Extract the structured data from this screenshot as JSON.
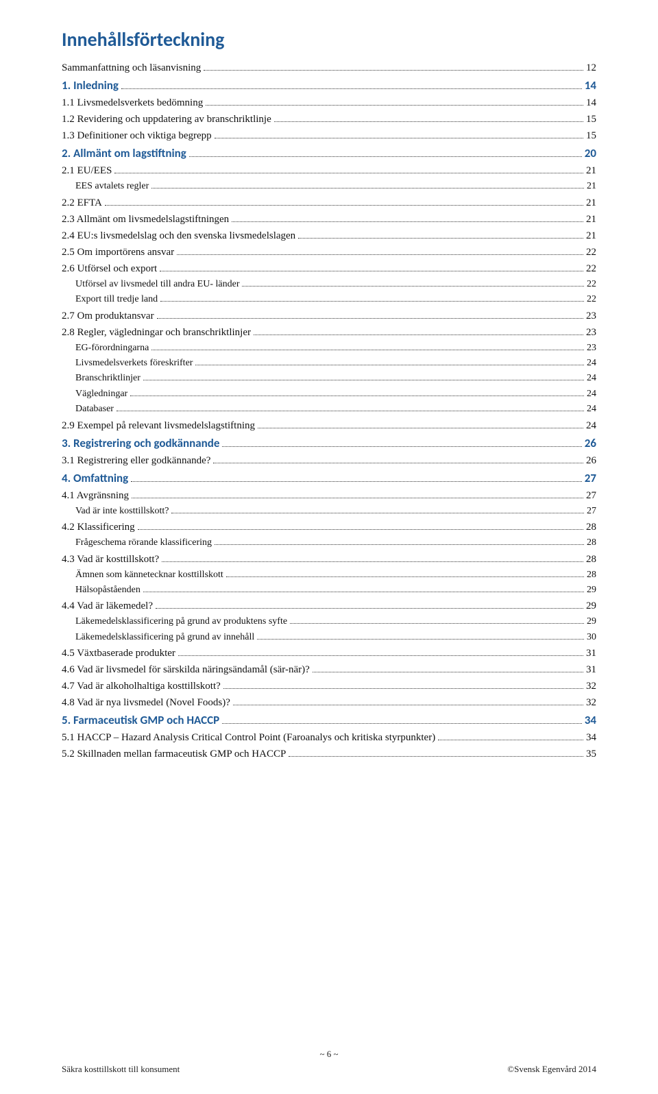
{
  "title": "Innehållsförteckning",
  "toc": [
    {
      "level": 1,
      "style": "normal",
      "label": "Sammanfattning och läsanvisning",
      "page": "12"
    },
    {
      "level": 0,
      "style": "heading",
      "label": "1. Inledning",
      "page": "14"
    },
    {
      "level": 1,
      "style": "normal",
      "label": "1.1 Livsmedelsverkets bedömning",
      "page": "14"
    },
    {
      "level": 1,
      "style": "normal",
      "label": "1.2 Revidering och uppdatering av branschriktlinje",
      "page": "15"
    },
    {
      "level": 1,
      "style": "normal",
      "label": "1.3 Definitioner och viktiga begrepp",
      "page": "15"
    },
    {
      "level": 0,
      "style": "heading",
      "label": "2. Allmänt om lagstiftning",
      "page": "20"
    },
    {
      "level": 1,
      "style": "normal",
      "label": "2.1 EU/EES",
      "page": "21"
    },
    {
      "level": 2,
      "style": "sub",
      "label": "EES avtalets regler",
      "page": "21"
    },
    {
      "level": 1,
      "style": "normal",
      "label": "2.2 EFTA",
      "page": "21"
    },
    {
      "level": 1,
      "style": "normal",
      "label": "2.3 Allmänt om livsmedelslagstiftningen",
      "page": "21"
    },
    {
      "level": 1,
      "style": "normal",
      "label": "2.4 EU:s livsmedelslag och den svenska livsmedelslagen",
      "page": "21"
    },
    {
      "level": 1,
      "style": "normal",
      "label": "2.5 Om importörens ansvar",
      "page": "22"
    },
    {
      "level": 1,
      "style": "normal",
      "label": "2.6 Utförsel och export",
      "page": "22"
    },
    {
      "level": 2,
      "style": "sub",
      "label": "Utförsel av livsmedel till andra EU- länder",
      "page": "22"
    },
    {
      "level": 2,
      "style": "sub",
      "label": "Export till tredje land",
      "page": "22"
    },
    {
      "level": 1,
      "style": "normal",
      "label": "2.7 Om produktansvar",
      "page": "23"
    },
    {
      "level": 1,
      "style": "normal",
      "label": "2.8 Regler, vägledningar och branschriktlinjer",
      "page": "23"
    },
    {
      "level": 2,
      "style": "sub",
      "label": "EG-förordningarna",
      "page": "23"
    },
    {
      "level": 2,
      "style": "sub",
      "label": "Livsmedelsverkets föreskrifter",
      "page": "24"
    },
    {
      "level": 2,
      "style": "sub",
      "label": "Branschriktlinjer",
      "page": "24"
    },
    {
      "level": 2,
      "style": "sub",
      "label": "Vägledningar",
      "page": "24"
    },
    {
      "level": 2,
      "style": "sub",
      "label": "Databaser",
      "page": "24"
    },
    {
      "level": 1,
      "style": "normal",
      "label": "2.9 Exempel på relevant livsmedelslagstiftning",
      "page": "24"
    },
    {
      "level": 0,
      "style": "heading",
      "label": "3. Registrering och godkännande",
      "page": "26"
    },
    {
      "level": 1,
      "style": "normal",
      "label": "3.1 Registrering eller godkännande?",
      "page": "26"
    },
    {
      "level": 0,
      "style": "heading",
      "label": "4. Omfattning",
      "page": "27"
    },
    {
      "level": 1,
      "style": "normal",
      "label": "4.1 Avgränsning",
      "page": "27"
    },
    {
      "level": 2,
      "style": "sub",
      "label": "Vad är inte kosttillskott?",
      "page": "27"
    },
    {
      "level": 1,
      "style": "normal",
      "label": "4.2 Klassificering",
      "page": "28"
    },
    {
      "level": 2,
      "style": "sub",
      "label": "Frågeschema rörande klassificering",
      "page": "28"
    },
    {
      "level": 1,
      "style": "normal",
      "label": "4.3 Vad är kosttillskott?",
      "page": "28"
    },
    {
      "level": 2,
      "style": "sub",
      "label": "Ämnen som kännetecknar kosttillskott",
      "page": "28"
    },
    {
      "level": 2,
      "style": "sub",
      "label": "Hälsopåståenden",
      "page": "29"
    },
    {
      "level": 1,
      "style": "normal",
      "label": "4.4 Vad är läkemedel?",
      "page": "29"
    },
    {
      "level": 2,
      "style": "sub",
      "label": "Läkemedelsklassificering på grund av produktens syfte",
      "page": "29"
    },
    {
      "level": 2,
      "style": "sub",
      "label": "Läkemedelsklassificering på grund av innehåll",
      "page": "30"
    },
    {
      "level": 1,
      "style": "normal",
      "label": "4.5 Växtbaserade produkter",
      "page": "31"
    },
    {
      "level": 1,
      "style": "normal",
      "label": "4.6 Vad är livsmedel för särskilda näringsändamål (sär-när)?",
      "page": "31"
    },
    {
      "level": 1,
      "style": "normal",
      "label": "4.7 Vad är alkoholhaltiga kosttillskott?",
      "page": "32"
    },
    {
      "level": 1,
      "style": "normal",
      "label": "4.8 Vad är nya livsmedel (Novel Foods)?",
      "page": "32"
    },
    {
      "level": 0,
      "style": "heading",
      "label": "5. Farmaceutisk GMP och HACCP",
      "page": "34"
    },
    {
      "level": 1,
      "style": "normal",
      "label": "5.1 HACCP – Hazard Analysis Critical Control Point (Faroanalys och kritiska styrpunkter)",
      "page": "34"
    },
    {
      "level": 1,
      "style": "normal",
      "label": "5.2 Skillnaden mellan farmaceutisk GMP och HACCP",
      "page": "35"
    }
  ],
  "footer": {
    "pagenum": "~ 6 ~",
    "left": "Säkra kosttillskott till konsument",
    "right": "©Svensk Egenvård 2014"
  }
}
